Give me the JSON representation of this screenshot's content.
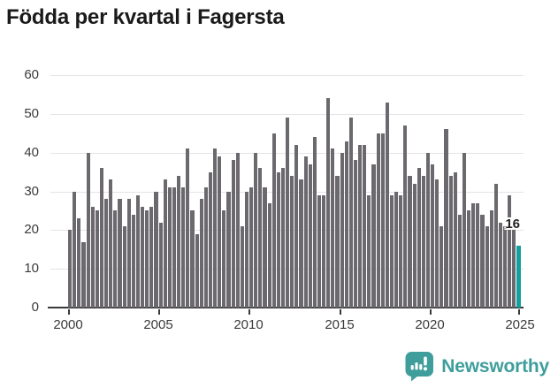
{
  "title": "Födda per kvartal i Fagersta",
  "chart_data": {
    "type": "bar",
    "title": "Födda per kvartal i Fagersta",
    "frequency": "quarterly",
    "x_tick_labels": [
      "2000",
      "2005",
      "2010",
      "2015",
      "2020",
      "2025"
    ],
    "y_ticks": [
      0,
      10,
      20,
      30,
      40,
      50,
      60
    ],
    "ylim": [
      0,
      60
    ],
    "grid": "horizontal",
    "legend": "none",
    "values": [
      20,
      30,
      23,
      17,
      40,
      26,
      25,
      36,
      28,
      33,
      25,
      28,
      21,
      28,
      24,
      29,
      26,
      25,
      26,
      30,
      22,
      33,
      31,
      31,
      34,
      31,
      41,
      25,
      19,
      28,
      31,
      35,
      41,
      39,
      25,
      30,
      38,
      40,
      21,
      30,
      31,
      40,
      36,
      31,
      27,
      45,
      35,
      36,
      49,
      34,
      42,
      33,
      39,
      37,
      44,
      29,
      29,
      54,
      41,
      34,
      40,
      43,
      49,
      38,
      42,
      42,
      29,
      37,
      45,
      45,
      53,
      29,
      30,
      29,
      47,
      34,
      32,
      36,
      34,
      40,
      37,
      33,
      21,
      46,
      34,
      35,
      24,
      40,
      25,
      27,
      27,
      24,
      21,
      25,
      32,
      22,
      21,
      29,
      21,
      16
    ],
    "highlight_last_value": 16,
    "highlight_label": "16",
    "bar_color": "#6c696e",
    "highlight_color": "#14a09e",
    "axis_color": "#3a3a3a",
    "grid_color": "#e4e4e4"
  },
  "footer": {
    "brand": "Newsworthy",
    "brand_color": "#3f9e9c"
  }
}
